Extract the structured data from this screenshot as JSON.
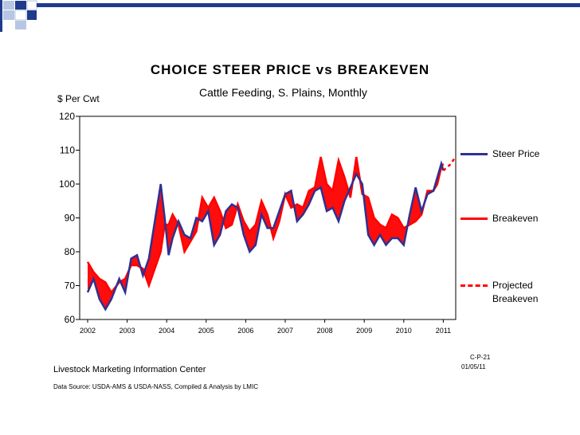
{
  "colors": {
    "steer": "#2e3192",
    "breakeven": "#ff0000",
    "band": "#ff0000",
    "decor_dark": "#1f3b8c",
    "decor_light": "#9db3dc"
  },
  "chart_data": {
    "type": "line",
    "title": "CHOICE  STEER  PRICE  vs  BREAKEVEN",
    "subtitle": "Cattle Feeding, S. Plains, Monthly",
    "ylabel": "$ Per Cwt",
    "xlabel": "",
    "ylim": [
      60,
      120
    ],
    "xlim": [
      2002,
      2011.5
    ],
    "y_ticks": [
      "60",
      "70",
      "80",
      "90",
      "100",
      "110",
      "120"
    ],
    "x_ticks": [
      "2002",
      "2003",
      "2004",
      "2005",
      "2006",
      "2007",
      "2008",
      "2009",
      "2010",
      "2011"
    ],
    "grid": false,
    "legend_position": "right",
    "series": [
      {
        "name": "Steer Price",
        "style": "solid",
        "x": [
          2002.0,
          2002.15,
          2002.3,
          2002.45,
          2002.6,
          2002.8,
          2002.95,
          2003.1,
          2003.25,
          2003.4,
          2003.55,
          2003.7,
          2003.85,
          2003.95,
          2004.05,
          2004.15,
          2004.3,
          2004.45,
          2004.6,
          2004.75,
          2004.9,
          2005.05,
          2005.2,
          2005.35,
          2005.5,
          2005.65,
          2005.8,
          2005.95,
          2006.1,
          2006.25,
          2006.4,
          2006.55,
          2006.7,
          2006.85,
          2007.0,
          2007.15,
          2007.3,
          2007.45,
          2007.6,
          2007.75,
          2007.9,
          2008.05,
          2008.2,
          2008.35,
          2008.5,
          2008.65,
          2008.8,
          2008.95,
          2009.1,
          2009.25,
          2009.4,
          2009.55,
          2009.7,
          2009.85,
          2010.0,
          2010.15,
          2010.3,
          2010.45,
          2010.6,
          2010.75,
          2010.85,
          2010.95,
          2011.0
        ],
        "values": [
          68,
          72,
          66,
          63,
          66,
          72,
          68,
          78,
          79,
          73,
          78,
          89,
          100,
          90,
          79,
          84,
          89,
          85,
          84,
          90,
          89,
          92,
          82,
          85,
          92,
          94,
          93,
          85,
          80,
          82,
          91,
          87,
          87,
          92,
          97,
          98,
          89,
          91,
          94,
          98,
          99,
          92,
          93,
          89,
          95,
          99,
          103,
          100,
          85,
          82,
          85,
          82,
          84,
          84,
          82,
          91,
          99,
          92,
          97,
          98,
          102,
          106,
          104
        ]
      },
      {
        "name": "Breakeven",
        "style": "solid",
        "x": [
          2002.0,
          2002.15,
          2002.3,
          2002.45,
          2002.6,
          2002.8,
          2002.95,
          2003.1,
          2003.25,
          2003.4,
          2003.55,
          2003.7,
          2003.85,
          2003.95,
          2004.05,
          2004.15,
          2004.3,
          2004.45,
          2004.6,
          2004.75,
          2004.9,
          2005.05,
          2005.2,
          2005.35,
          2005.5,
          2005.65,
          2005.8,
          2005.95,
          2006.1,
          2006.25,
          2006.4,
          2006.55,
          2006.7,
          2006.85,
          2007.0,
          2007.15,
          2007.3,
          2007.45,
          2007.6,
          2007.75,
          2007.9,
          2008.05,
          2008.2,
          2008.35,
          2008.5,
          2008.65,
          2008.8,
          2008.95,
          2009.1,
          2009.25,
          2009.4,
          2009.55,
          2009.7,
          2009.85,
          2010.0,
          2010.15,
          2010.3,
          2010.45,
          2010.6,
          2010.75,
          2010.85,
          2010.95,
          2011.0
        ],
        "values": [
          77,
          74,
          72,
          71,
          68,
          71,
          72,
          76,
          76,
          75,
          70,
          75,
          80,
          88,
          88,
          91,
          88,
          80,
          83,
          86,
          96,
          93,
          96,
          92,
          87,
          88,
          94,
          89,
          86,
          88,
          95,
          91,
          84,
          89,
          97,
          93,
          94,
          93,
          98,
          99,
          108,
          100,
          98,
          107,
          102,
          96,
          108,
          97,
          96,
          90,
          88,
          87,
          91,
          90,
          87,
          88,
          89,
          91,
          98,
          98,
          100,
          105,
          106
        ]
      },
      {
        "name": "Projected Breakeven",
        "style": "dashed",
        "x": [
          2011.0,
          2011.1,
          2011.2,
          2011.3
        ],
        "values": [
          104,
          105,
          106,
          108
        ]
      }
    ]
  },
  "footer": {
    "source_org": "Livestock Marketing Information Center",
    "data_source": "Data Source:  USDA-AMS & USDA-NASS, Compiled & Analysis by LMIC",
    "code": "C-P-21",
    "date": "01/05/11"
  },
  "legend": {
    "steer_label": "Steer Price",
    "breakeven_label": "Breakeven",
    "projected_label": "Projected Breakeven"
  }
}
